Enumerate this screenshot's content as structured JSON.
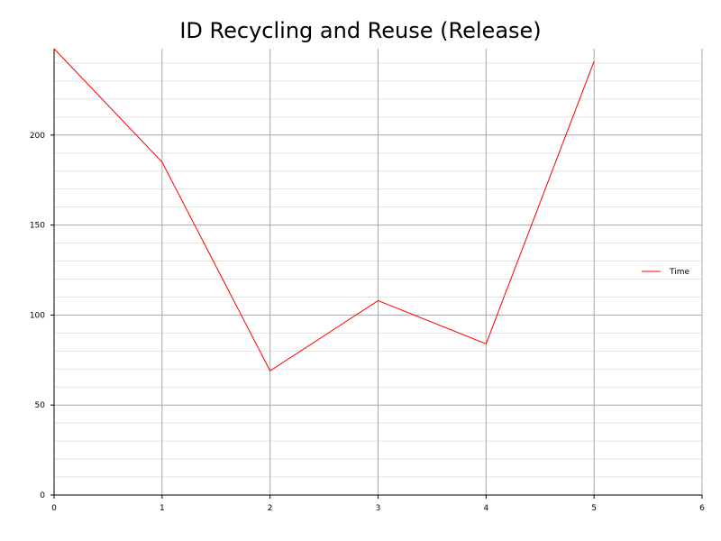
{
  "chart_data": {
    "type": "line",
    "title": "ID Recycling and Reuse (Release)",
    "xlabel": "",
    "ylabel": "",
    "x": [
      0,
      1,
      2,
      3,
      4,
      5
    ],
    "series": [
      {
        "name": "Time",
        "color": "#ff0000",
        "values": [
          248,
          185,
          69,
          108,
          84,
          241
        ]
      }
    ],
    "xlim": [
      0,
      6
    ],
    "ylim": [
      0,
      248
    ],
    "xticks": [
      0,
      1,
      2,
      3,
      4,
      5,
      6
    ],
    "yticks": [
      0,
      50,
      100,
      150,
      200
    ],
    "grid": true,
    "legend_position": "right"
  }
}
